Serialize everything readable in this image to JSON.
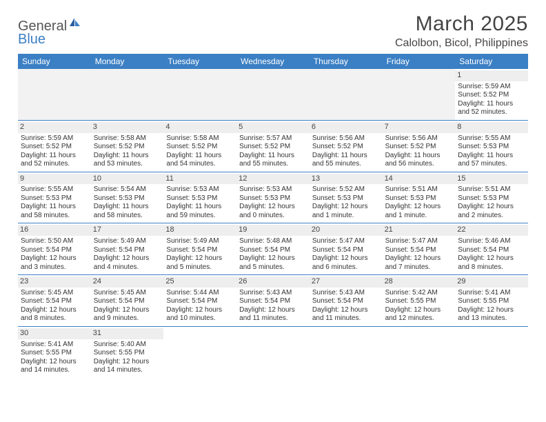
{
  "logo": {
    "text1": "General",
    "text2": "Blue"
  },
  "title": "March 2025",
  "location": "Calolbon, Bicol, Philippines",
  "colors": {
    "header_bg": "#3b7fc4",
    "cell_border": "#3b7fc4",
    "daynum_bg": "#eeeeee",
    "empty_bg": "#f2f2f2"
  },
  "day_labels": [
    "Sunday",
    "Monday",
    "Tuesday",
    "Wednesday",
    "Thursday",
    "Friday",
    "Saturday"
  ],
  "weeks": [
    [
      null,
      null,
      null,
      null,
      null,
      null,
      {
        "n": "1",
        "sr": "Sunrise: 5:59 AM",
        "ss": "Sunset: 5:52 PM",
        "dl": "Daylight: 11 hours and 52 minutes."
      }
    ],
    [
      {
        "n": "2",
        "sr": "Sunrise: 5:59 AM",
        "ss": "Sunset: 5:52 PM",
        "dl": "Daylight: 11 hours and 52 minutes."
      },
      {
        "n": "3",
        "sr": "Sunrise: 5:58 AM",
        "ss": "Sunset: 5:52 PM",
        "dl": "Daylight: 11 hours and 53 minutes."
      },
      {
        "n": "4",
        "sr": "Sunrise: 5:58 AM",
        "ss": "Sunset: 5:52 PM",
        "dl": "Daylight: 11 hours and 54 minutes."
      },
      {
        "n": "5",
        "sr": "Sunrise: 5:57 AM",
        "ss": "Sunset: 5:52 PM",
        "dl": "Daylight: 11 hours and 55 minutes."
      },
      {
        "n": "6",
        "sr": "Sunrise: 5:56 AM",
        "ss": "Sunset: 5:52 PM",
        "dl": "Daylight: 11 hours and 55 minutes."
      },
      {
        "n": "7",
        "sr": "Sunrise: 5:56 AM",
        "ss": "Sunset: 5:52 PM",
        "dl": "Daylight: 11 hours and 56 minutes."
      },
      {
        "n": "8",
        "sr": "Sunrise: 5:55 AM",
        "ss": "Sunset: 5:53 PM",
        "dl": "Daylight: 11 hours and 57 minutes."
      }
    ],
    [
      {
        "n": "9",
        "sr": "Sunrise: 5:55 AM",
        "ss": "Sunset: 5:53 PM",
        "dl": "Daylight: 11 hours and 58 minutes."
      },
      {
        "n": "10",
        "sr": "Sunrise: 5:54 AM",
        "ss": "Sunset: 5:53 PM",
        "dl": "Daylight: 11 hours and 58 minutes."
      },
      {
        "n": "11",
        "sr": "Sunrise: 5:53 AM",
        "ss": "Sunset: 5:53 PM",
        "dl": "Daylight: 11 hours and 59 minutes."
      },
      {
        "n": "12",
        "sr": "Sunrise: 5:53 AM",
        "ss": "Sunset: 5:53 PM",
        "dl": "Daylight: 12 hours and 0 minutes."
      },
      {
        "n": "13",
        "sr": "Sunrise: 5:52 AM",
        "ss": "Sunset: 5:53 PM",
        "dl": "Daylight: 12 hours and 1 minute."
      },
      {
        "n": "14",
        "sr": "Sunrise: 5:51 AM",
        "ss": "Sunset: 5:53 PM",
        "dl": "Daylight: 12 hours and 1 minute."
      },
      {
        "n": "15",
        "sr": "Sunrise: 5:51 AM",
        "ss": "Sunset: 5:53 PM",
        "dl": "Daylight: 12 hours and 2 minutes."
      }
    ],
    [
      {
        "n": "16",
        "sr": "Sunrise: 5:50 AM",
        "ss": "Sunset: 5:54 PM",
        "dl": "Daylight: 12 hours and 3 minutes."
      },
      {
        "n": "17",
        "sr": "Sunrise: 5:49 AM",
        "ss": "Sunset: 5:54 PM",
        "dl": "Daylight: 12 hours and 4 minutes."
      },
      {
        "n": "18",
        "sr": "Sunrise: 5:49 AM",
        "ss": "Sunset: 5:54 PM",
        "dl": "Daylight: 12 hours and 5 minutes."
      },
      {
        "n": "19",
        "sr": "Sunrise: 5:48 AM",
        "ss": "Sunset: 5:54 PM",
        "dl": "Daylight: 12 hours and 5 minutes."
      },
      {
        "n": "20",
        "sr": "Sunrise: 5:47 AM",
        "ss": "Sunset: 5:54 PM",
        "dl": "Daylight: 12 hours and 6 minutes."
      },
      {
        "n": "21",
        "sr": "Sunrise: 5:47 AM",
        "ss": "Sunset: 5:54 PM",
        "dl": "Daylight: 12 hours and 7 minutes."
      },
      {
        "n": "22",
        "sr": "Sunrise: 5:46 AM",
        "ss": "Sunset: 5:54 PM",
        "dl": "Daylight: 12 hours and 8 minutes."
      }
    ],
    [
      {
        "n": "23",
        "sr": "Sunrise: 5:45 AM",
        "ss": "Sunset: 5:54 PM",
        "dl": "Daylight: 12 hours and 8 minutes."
      },
      {
        "n": "24",
        "sr": "Sunrise: 5:45 AM",
        "ss": "Sunset: 5:54 PM",
        "dl": "Daylight: 12 hours and 9 minutes."
      },
      {
        "n": "25",
        "sr": "Sunrise: 5:44 AM",
        "ss": "Sunset: 5:54 PM",
        "dl": "Daylight: 12 hours and 10 minutes."
      },
      {
        "n": "26",
        "sr": "Sunrise: 5:43 AM",
        "ss": "Sunset: 5:54 PM",
        "dl": "Daylight: 12 hours and 11 minutes."
      },
      {
        "n": "27",
        "sr": "Sunrise: 5:43 AM",
        "ss": "Sunset: 5:54 PM",
        "dl": "Daylight: 12 hours and 11 minutes."
      },
      {
        "n": "28",
        "sr": "Sunrise: 5:42 AM",
        "ss": "Sunset: 5:55 PM",
        "dl": "Daylight: 12 hours and 12 minutes."
      },
      {
        "n": "29",
        "sr": "Sunrise: 5:41 AM",
        "ss": "Sunset: 5:55 PM",
        "dl": "Daylight: 12 hours and 13 minutes."
      }
    ],
    [
      {
        "n": "30",
        "sr": "Sunrise: 5:41 AM",
        "ss": "Sunset: 5:55 PM",
        "dl": "Daylight: 12 hours and 14 minutes."
      },
      {
        "n": "31",
        "sr": "Sunrise: 5:40 AM",
        "ss": "Sunset: 5:55 PM",
        "dl": "Daylight: 12 hours and 14 minutes."
      },
      null,
      null,
      null,
      null,
      null
    ]
  ]
}
